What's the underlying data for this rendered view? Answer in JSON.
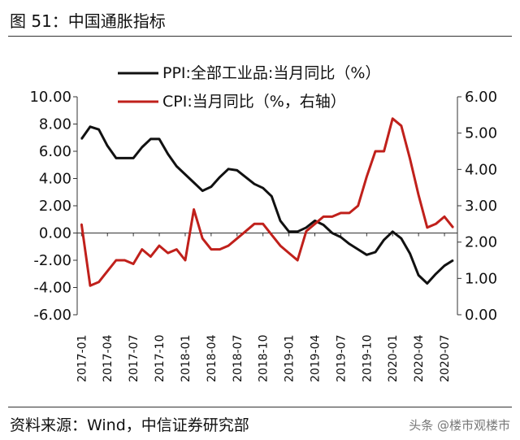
{
  "figure": {
    "title": "图 51：中国通胀指标",
    "source": "资料来源：Wind，中信证券研究部",
    "watermark": "头条 @楼市观楼市"
  },
  "chart_data": {
    "type": "line",
    "x": [
      "2017-01",
      "2017-02",
      "2017-03",
      "2017-04",
      "2017-05",
      "2017-06",
      "2017-07",
      "2017-08",
      "2017-09",
      "2017-10",
      "2017-11",
      "2017-12",
      "2018-01",
      "2018-02",
      "2018-03",
      "2018-04",
      "2018-05",
      "2018-06",
      "2018-07",
      "2018-08",
      "2018-09",
      "2018-10",
      "2018-11",
      "2018-12",
      "2019-01",
      "2019-02",
      "2019-03",
      "2019-04",
      "2019-05",
      "2019-06",
      "2019-07",
      "2019-08",
      "2019-09",
      "2019-10",
      "2019-11",
      "2019-12",
      "2020-01",
      "2020-02",
      "2020-03",
      "2020-04",
      "2020-05",
      "2020-06",
      "2020-07",
      "2020-08"
    ],
    "x_tick_labels": [
      "2017-01",
      "2017-04",
      "2017-07",
      "2017-10",
      "2018-01",
      "2018-04",
      "2018-07",
      "2018-10",
      "2019-01",
      "2019-04",
      "2019-07",
      "2019-10",
      "2020-01",
      "2020-04",
      "2020-07"
    ],
    "series": [
      {
        "name": "PPI:全部工业品:当月同比（%）",
        "axis": "left",
        "color": "#111111",
        "values": [
          6.9,
          7.8,
          7.6,
          6.4,
          5.5,
          5.5,
          5.5,
          6.3,
          6.9,
          6.9,
          5.8,
          4.9,
          4.3,
          3.7,
          3.1,
          3.4,
          4.1,
          4.7,
          4.6,
          4.1,
          3.6,
          3.3,
          2.7,
          0.9,
          0.1,
          0.1,
          0.4,
          0.9,
          0.6,
          0.0,
          -0.3,
          -0.8,
          -1.2,
          -1.6,
          -1.4,
          -0.5,
          0.1,
          -0.4,
          -1.5,
          -3.1,
          -3.7,
          -3.0,
          -2.4,
          -2.0
        ]
      },
      {
        "name": "CPI:当月同比（%，右轴）",
        "axis": "right",
        "color": "#c0201b",
        "values": [
          2.5,
          0.8,
          0.9,
          1.2,
          1.5,
          1.5,
          1.4,
          1.8,
          1.6,
          1.9,
          1.7,
          1.8,
          1.5,
          2.9,
          2.1,
          1.8,
          1.8,
          1.9,
          2.1,
          2.3,
          2.5,
          2.5,
          2.2,
          1.9,
          1.7,
          1.5,
          2.3,
          2.5,
          2.7,
          2.7,
          2.8,
          2.8,
          3.0,
          3.8,
          4.5,
          4.5,
          5.4,
          5.2,
          4.3,
          3.3,
          2.4,
          2.5,
          2.7,
          2.4
        ]
      }
    ],
    "y_left": {
      "lim": [
        -6,
        10
      ],
      "ticks": [
        "10.00",
        "8.00",
        "6.00",
        "4.00",
        "2.00",
        "0.00",
        "-2.00",
        "-4.00",
        "-6.00"
      ]
    },
    "y_right": {
      "lim": [
        0,
        6
      ],
      "ticks": [
        "6.00",
        "5.00",
        "4.00",
        "3.00",
        "2.00",
        "1.00",
        "0.00"
      ]
    },
    "grid": false,
    "legend": "top"
  }
}
